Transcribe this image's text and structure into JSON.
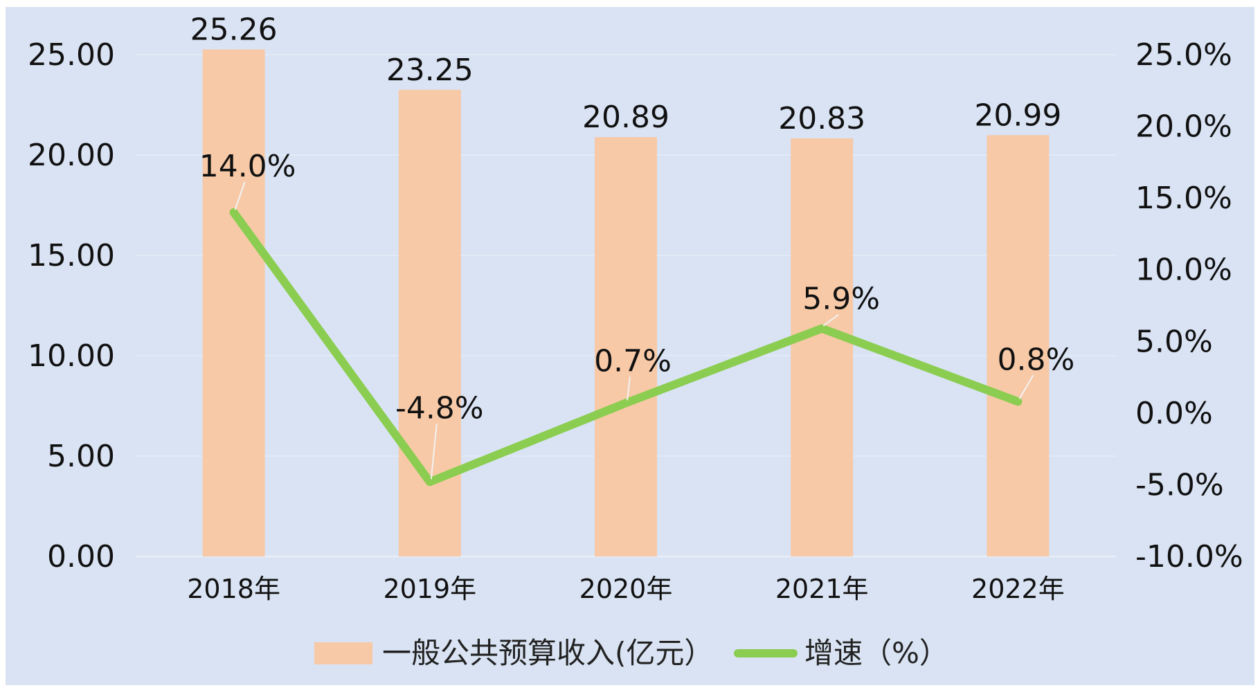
{
  "colors": {
    "background": "#d9e3f3",
    "bar": "#f7c9a7",
    "line": "#8bcd50",
    "gridline": "#e6edf8",
    "text": "#111111"
  },
  "chart_data": {
    "type": "bar",
    "categories": [
      "2018年",
      "2019年",
      "2020年",
      "2021年",
      "2022年"
    ],
    "series": [
      {
        "name": "一般公共预算收入(亿元）",
        "type": "bar",
        "axis": "left",
        "values": [
          25.26,
          23.25,
          20.89,
          20.83,
          20.99
        ],
        "labels": [
          "25.26",
          "23.25",
          "20.89",
          "20.83",
          "20.99"
        ]
      },
      {
        "name": "增速（%）",
        "type": "line",
        "axis": "right",
        "values": [
          14.0,
          -4.8,
          0.7,
          5.9,
          0.8
        ],
        "labels": [
          "14.0%",
          "-4.8%",
          "0.7%",
          "5.9%",
          "0.8%"
        ]
      }
    ],
    "y_left": {
      "ylim": [
        0,
        25
      ],
      "ticks": [
        0,
        5,
        10,
        15,
        20,
        25
      ],
      "tick_labels": [
        "0.00",
        "5.00",
        "10.00",
        "15.00",
        "20.00",
        "25.00"
      ]
    },
    "y_right": {
      "ylim": [
        -10,
        25
      ],
      "ticks": [
        -10,
        -5,
        0,
        5,
        10,
        15,
        20,
        25
      ],
      "tick_labels": [
        "-10.0%",
        "-5.0%",
        "0.0%",
        "5.0%",
        "10.0%",
        "15.0%",
        "20.0%",
        "25.0%"
      ]
    },
    "grid": true,
    "legend": "bottom"
  }
}
